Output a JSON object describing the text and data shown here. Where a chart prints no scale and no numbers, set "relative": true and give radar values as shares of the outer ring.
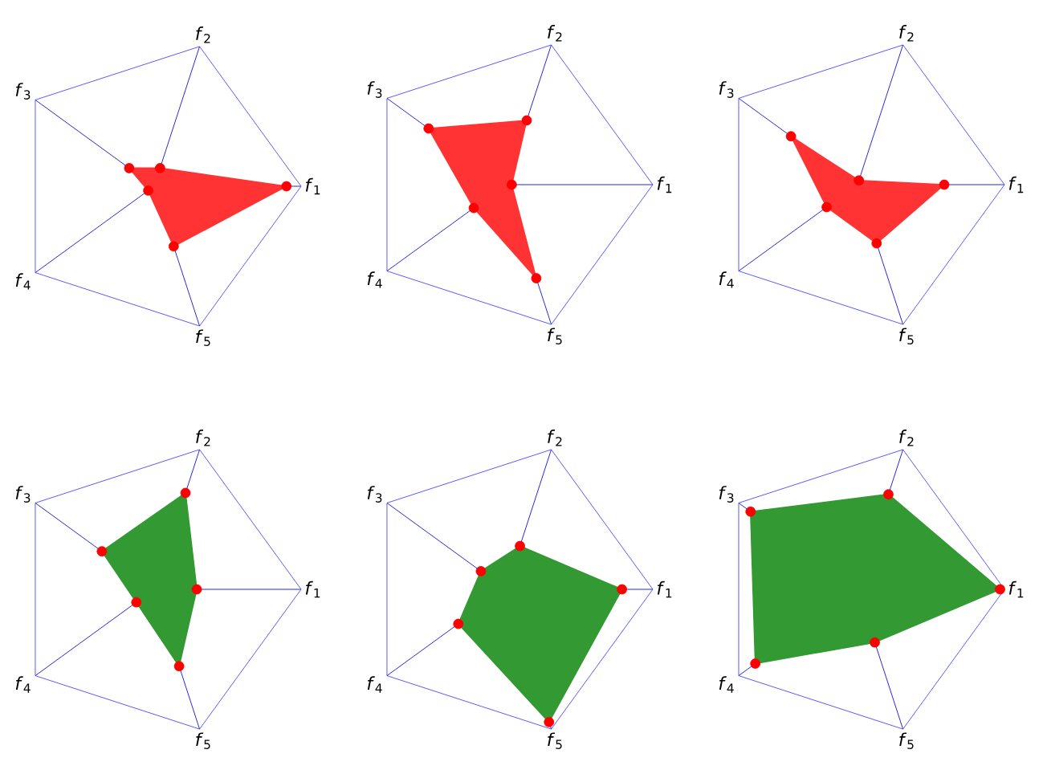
{
  "chart_data": [
    {
      "type": "radar",
      "categories": [
        "*f*$_{2}$",
        "*f*$_{1}$",
        "*f*$_{5}$",
        "*f*$_{4}$",
        "*f*$_{3}$"
      ],
      "relative": true,
      "grid": true,
      "marker": "circle",
      "series": [
        {
          "color": "#ff3333",
          "values": [
            0.13,
            0.9,
            0.43,
            0.05,
            0.21
          ]
        }
      ]
    },
    {
      "type": "radar",
      "categories": [
        "*f*$_{2}$",
        "*f*$_{1}$",
        "*f*$_{5}$",
        "*f*$_{4}$",
        "*f*$_{3}$"
      ],
      "relative": true,
      "grid": true,
      "marker": "circle",
      "series": [
        {
          "color": "#ff3333",
          "values": [
            0.46,
            0.04,
            0.67,
            0.27,
            0.65
          ]
        }
      ]
    },
    {
      "type": "radar",
      "categories": [
        "*f*$_{2}$",
        "*f*$_{1}$",
        "*f*$_{5}$",
        "*f*$_{4}$",
        "*f*$_{3}$"
      ],
      "relative": true,
      "grid": true,
      "marker": "circle",
      "series": [
        {
          "color": "#ff3333",
          "values": [
            0.03,
            0.59,
            0.42,
            0.26,
            0.56
          ]
        }
      ]
    },
    {
      "type": "radar",
      "categories": [
        "*f*$_{2}$",
        "*f*$_{1}$",
        "*f*$_{5}$",
        "*f*$_{4}$",
        "*f*$_{3}$"
      ],
      "relative": true,
      "grid": true,
      "marker": "circle",
      "series": [
        {
          "color": "#339933",
          "values": [
            0.69,
            0.29,
            0.55,
            0.15,
            0.44
          ]
        }
      ]
    },
    {
      "type": "radar",
      "categories": [
        "*f*$_{2}$",
        "*f*$_{1}$",
        "*f*$_{5}$",
        "*f*$_{4}$",
        "*f*$_{3}$"
      ],
      "relative": true,
      "grid": true,
      "marker": "circle",
      "series": [
        {
          "color": "#339933",
          "values": [
            0.31,
            0.79,
            0.95,
            0.4,
            0.21
          ]
        }
      ]
    },
    {
      "type": "radar",
      "categories": [
        "*f*$_{2}$",
        "*f*$_{1}$",
        "*f*$_{5}$",
        "*f*$_{4}$",
        "*f*$_{3}$"
      ],
      "relative": true,
      "grid": true,
      "marker": "circle",
      "series": [
        {
          "color": "#339933",
          "values": [
            0.68,
            0.97,
            0.38,
            0.86,
            0.9
          ]
        }
      ]
    }
  ]
}
